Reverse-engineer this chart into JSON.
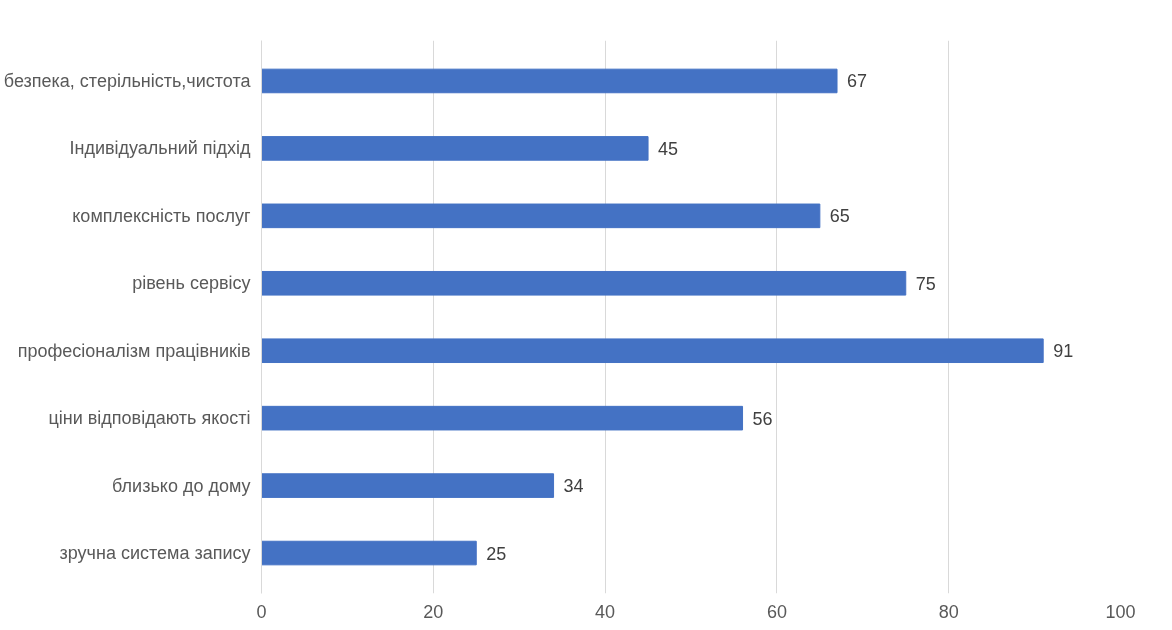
{
  "chart_data": {
    "type": "bar",
    "orientation": "horizontal",
    "categories": [
      "безпека, стерільність,чистота",
      "Індивідуальний підхід",
      "комплексність послуг",
      "рівень сервісу",
      "професіоналізм працівників",
      "ціни відповідають якості",
      "близько до дому",
      "зручна система запису"
    ],
    "values": [
      67,
      45,
      65,
      75,
      91,
      56,
      34,
      25
    ],
    "color": "#4472c4",
    "data_labels": true,
    "xlim": [
      0,
      100
    ],
    "xticks": [
      0,
      20,
      40,
      60,
      80,
      100
    ],
    "grid": "x"
  }
}
